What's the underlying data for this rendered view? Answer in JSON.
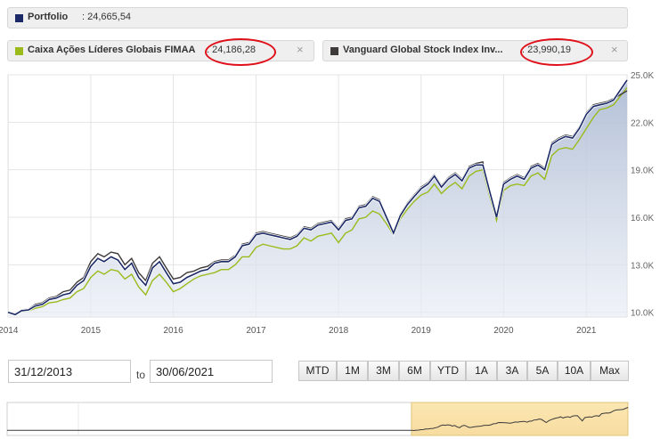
{
  "legend": {
    "portfolio": {
      "label": "Portfolio",
      "value": ": 24,665,54",
      "color": "#1b2a66"
    },
    "fund1": {
      "label": "Caixa Ações Líderes Globais FIMAA",
      "value": ": 24,186,28",
      "color": "#9bbb1c",
      "close": "×"
    },
    "fund2": {
      "label": "Vanguard Global Stock Index Inv...",
      "value": ": 23,990,19",
      "color": "#3f3a3a",
      "close": "×"
    },
    "annotation_color": "#e0101a"
  },
  "chart_data": {
    "type": "area",
    "y_tick_labels": [
      "25.0K",
      "22.0K",
      "19.0K",
      "16.0K",
      "13.0K",
      "10.0K"
    ],
    "y_ticks": [
      25000,
      22000,
      19000,
      16000,
      13000,
      10000
    ],
    "ylim": [
      9700,
      25000
    ],
    "x_tick_labels": [
      "2014",
      "2015",
      "2016",
      "2017",
      "2018",
      "2019",
      "2020",
      "2021"
    ],
    "x_ticks": [
      "2014-01-01",
      "2015-01-01",
      "2016-01-01",
      "2017-01-01",
      "2018-01-01",
      "2019-01-01",
      "2020-01-01",
      "2021-01-01"
    ],
    "xlim": [
      "2013-12-31",
      "2021-06-30"
    ],
    "grid": true,
    "series": [
      {
        "name": "Portfolio",
        "color": "#1b2a66",
        "area": true,
        "x": [
          "2013-12-31",
          "2014-02-01",
          "2014-03-01",
          "2014-04-01",
          "2014-05-01",
          "2014-06-01",
          "2014-07-01",
          "2014-08-01",
          "2014-09-01",
          "2014-10-01",
          "2014-11-01",
          "2014-12-01",
          "2015-01-01",
          "2015-02-01",
          "2015-03-01",
          "2015-04-01",
          "2015-05-01",
          "2015-06-01",
          "2015-07-01",
          "2015-08-01",
          "2015-09-01",
          "2015-10-01",
          "2015-11-01",
          "2015-12-01",
          "2016-01-01",
          "2016-02-01",
          "2016-03-01",
          "2016-04-01",
          "2016-05-01",
          "2016-06-01",
          "2016-07-01",
          "2016-08-01",
          "2016-09-01",
          "2016-10-01",
          "2016-11-01",
          "2016-12-01",
          "2017-01-01",
          "2017-02-01",
          "2017-03-01",
          "2017-04-01",
          "2017-05-01",
          "2017-06-01",
          "2017-07-01",
          "2017-08-01",
          "2017-09-01",
          "2017-10-01",
          "2017-11-01",
          "2017-12-01",
          "2018-01-01",
          "2018-02-01",
          "2018-03-01",
          "2018-04-01",
          "2018-05-01",
          "2018-06-01",
          "2018-07-01",
          "2018-08-01",
          "2018-09-01",
          "2018-10-01",
          "2018-11-01",
          "2018-12-01",
          "2019-01-01",
          "2019-02-01",
          "2019-03-01",
          "2019-04-01",
          "2019-05-01",
          "2019-06-01",
          "2019-07-01",
          "2019-08-01",
          "2019-09-01",
          "2019-10-01",
          "2019-11-01",
          "2019-12-01",
          "2020-01-01",
          "2020-02-01",
          "2020-03-01",
          "2020-04-01",
          "2020-05-01",
          "2020-06-01",
          "2020-07-01",
          "2020-08-01",
          "2020-09-01",
          "2020-10-01",
          "2020-11-01",
          "2020-12-01",
          "2021-01-01",
          "2021-02-01",
          "2021-03-01",
          "2021-04-01",
          "2021-05-01",
          "2021-06-30"
        ],
        "y": [
          10000,
          9850,
          10100,
          10150,
          10400,
          10500,
          10800,
          10900,
          11100,
          11200,
          11700,
          12000,
          12900,
          13400,
          13200,
          13500,
          13300,
          12700,
          13100,
          12200,
          11700,
          12800,
          13200,
          12500,
          11800,
          11900,
          12200,
          12400,
          12600,
          12700,
          13100,
          13200,
          13200,
          13500,
          14200,
          14300,
          14900,
          15000,
          14900,
          14800,
          14700,
          14600,
          14800,
          15300,
          15200,
          15500,
          15600,
          15700,
          15200,
          15800,
          15900,
          16600,
          16700,
          17200,
          17000,
          16000,
          15000,
          16100,
          16800,
          17300,
          17800,
          18100,
          18600,
          17900,
          18400,
          18700,
          18300,
          19100,
          19300,
          19300,
          17600,
          16000,
          18100,
          18400,
          18600,
          18400,
          19100,
          19300,
          19000,
          20600,
          20900,
          21100,
          21000,
          21600,
          22500,
          23000,
          23100,
          23200,
          23400,
          24665
        ]
      },
      {
        "name": "Caixa Ações Líderes Globais FIMAA",
        "color": "#9bbb1c",
        "area": false,
        "x": [
          "2013-12-31",
          "2014-02-01",
          "2014-03-01",
          "2014-04-01",
          "2014-05-01",
          "2014-06-01",
          "2014-07-01",
          "2014-08-01",
          "2014-09-01",
          "2014-10-01",
          "2014-11-01",
          "2014-12-01",
          "2015-01-01",
          "2015-02-01",
          "2015-03-01",
          "2015-04-01",
          "2015-05-01",
          "2015-06-01",
          "2015-07-01",
          "2015-08-01",
          "2015-09-01",
          "2015-10-01",
          "2015-11-01",
          "2015-12-01",
          "2016-01-01",
          "2016-02-01",
          "2016-03-01",
          "2016-04-01",
          "2016-05-01",
          "2016-06-01",
          "2016-07-01",
          "2016-08-01",
          "2016-09-01",
          "2016-10-01",
          "2016-11-01",
          "2016-12-01",
          "2017-01-01",
          "2017-02-01",
          "2017-03-01",
          "2017-04-01",
          "2017-05-01",
          "2017-06-01",
          "2017-07-01",
          "2017-08-01",
          "2017-09-01",
          "2017-10-01",
          "2017-11-01",
          "2017-12-01",
          "2018-01-01",
          "2018-02-01",
          "2018-03-01",
          "2018-04-01",
          "2018-05-01",
          "2018-06-01",
          "2018-07-01",
          "2018-08-01",
          "2018-09-01",
          "2018-10-01",
          "2018-11-01",
          "2018-12-01",
          "2019-01-01",
          "2019-02-01",
          "2019-03-01",
          "2019-04-01",
          "2019-05-01",
          "2019-06-01",
          "2019-07-01",
          "2019-08-01",
          "2019-09-01",
          "2019-10-01",
          "2019-11-01",
          "2019-12-01",
          "2020-01-01",
          "2020-02-01",
          "2020-03-01",
          "2020-04-01",
          "2020-05-01",
          "2020-06-01",
          "2020-07-01",
          "2020-08-01",
          "2020-09-01",
          "2020-10-01",
          "2020-11-01",
          "2020-12-01",
          "2021-01-01",
          "2021-02-01",
          "2021-03-01",
          "2021-04-01",
          "2021-05-01",
          "2021-06-30"
        ],
        "y": [
          10000,
          9850,
          10050,
          10100,
          10250,
          10350,
          10600,
          10650,
          10800,
          10900,
          11300,
          11500,
          12200,
          12600,
          12400,
          12700,
          12600,
          12100,
          12400,
          11600,
          11100,
          12000,
          12400,
          11900,
          11300,
          11500,
          11800,
          12100,
          12300,
          12400,
          12500,
          12700,
          12700,
          13000,
          13500,
          13500,
          14100,
          14300,
          14200,
          14100,
          14000,
          14000,
          14200,
          14700,
          14500,
          14800,
          14900,
          15000,
          14400,
          15000,
          15200,
          15900,
          16000,
          16400,
          16200,
          15600,
          14900,
          15900,
          16500,
          17000,
          17400,
          17600,
          18100,
          17500,
          17900,
          18200,
          17800,
          18600,
          18900,
          19000,
          17300,
          15800,
          17700,
          18000,
          18100,
          18000,
          18600,
          18800,
          18400,
          19900,
          20300,
          20400,
          20300,
          20900,
          21600,
          22300,
          22800,
          22900,
          23100,
          24186
        ]
      },
      {
        "name": "Vanguard Global Stock Index Inv...",
        "color": "#3f3a3a",
        "area": false,
        "x": [
          "2013-12-31",
          "2014-02-01",
          "2014-03-01",
          "2014-04-01",
          "2014-05-01",
          "2014-06-01",
          "2014-07-01",
          "2014-08-01",
          "2014-09-01",
          "2014-10-01",
          "2014-11-01",
          "2014-12-01",
          "2015-01-01",
          "2015-02-01",
          "2015-03-01",
          "2015-04-01",
          "2015-05-01",
          "2015-06-01",
          "2015-07-01",
          "2015-08-01",
          "2015-09-01",
          "2015-10-01",
          "2015-11-01",
          "2015-12-01",
          "2016-01-01",
          "2016-02-01",
          "2016-03-01",
          "2016-04-01",
          "2016-05-01",
          "2016-06-01",
          "2016-07-01",
          "2016-08-01",
          "2016-09-01",
          "2016-10-01",
          "2016-11-01",
          "2016-12-01",
          "2017-01-01",
          "2017-02-01",
          "2017-03-01",
          "2017-04-01",
          "2017-05-01",
          "2017-06-01",
          "2017-07-01",
          "2017-08-01",
          "2017-09-01",
          "2017-10-01",
          "2017-11-01",
          "2017-12-01",
          "2018-01-01",
          "2018-02-01",
          "2018-03-01",
          "2018-04-01",
          "2018-05-01",
          "2018-06-01",
          "2018-07-01",
          "2018-08-01",
          "2018-09-01",
          "2018-10-01",
          "2018-11-01",
          "2018-12-01",
          "2019-01-01",
          "2019-02-01",
          "2019-03-01",
          "2019-04-01",
          "2019-05-01",
          "2019-06-01",
          "2019-07-01",
          "2019-08-01",
          "2019-09-01",
          "2019-10-01",
          "2019-11-01",
          "2019-12-01",
          "2020-01-01",
          "2020-02-01",
          "2020-03-01",
          "2020-04-01",
          "2020-05-01",
          "2020-06-01",
          "2020-07-01",
          "2020-08-01",
          "2020-09-01",
          "2020-10-01",
          "2020-11-01",
          "2020-12-01",
          "2021-01-01",
          "2021-02-01",
          "2021-03-01",
          "2021-04-01",
          "2021-05-01",
          "2021-06-30"
        ],
        "y": [
          10000,
          9900,
          10150,
          10200,
          10500,
          10600,
          10900,
          11000,
          11300,
          11400,
          11900,
          12200,
          13200,
          13700,
          13500,
          13800,
          13700,
          13000,
          13400,
          12500,
          12000,
          13100,
          13500,
          12800,
          12100,
          12200,
          12500,
          12600,
          12800,
          12900,
          13200,
          13300,
          13300,
          13600,
          14300,
          14400,
          15000,
          15100,
          15000,
          14900,
          14800,
          14700,
          14900,
          15400,
          15300,
          15600,
          15700,
          15800,
          15300,
          15900,
          16000,
          16700,
          16800,
          17300,
          17100,
          16100,
          15100,
          16200,
          16900,
          17400,
          17900,
          18200,
          18700,
          18000,
          18500,
          18800,
          18400,
          19200,
          19400,
          19500,
          17700,
          16100,
          18200,
          18500,
          18700,
          18500,
          19200,
          19400,
          19100,
          20700,
          21000,
          21200,
          21100,
          21700,
          22600,
          23100,
          23200,
          23300,
          23500,
          23990
        ]
      }
    ]
  },
  "navigator": {
    "xlim": [
      "2000-01-01",
      "2021-06-30"
    ],
    "selection": [
      "2013-12-31",
      "2021-06-30"
    ]
  },
  "date_range": {
    "from": "31/12/2013",
    "to_label": "to",
    "to": "30/06/2021"
  },
  "range_buttons": [
    "MTD",
    "1M",
    "3M",
    "6M",
    "YTD",
    "1A",
    "3A",
    "5A",
    "10A",
    "Max"
  ]
}
